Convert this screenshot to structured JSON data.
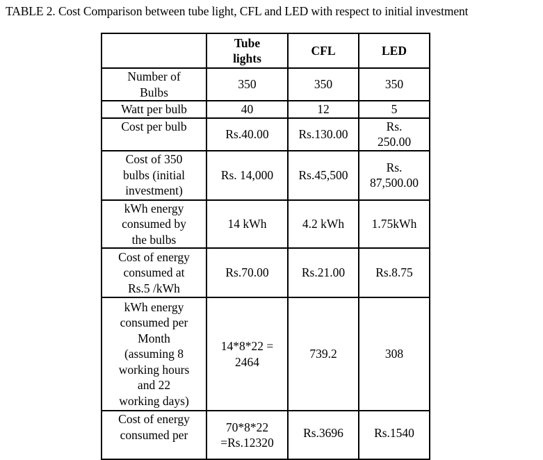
{
  "caption": "TABLE 2. Cost Comparison between tube light, CFL and LED with respect to initial investment",
  "headers": [
    "",
    "Tube\nlights",
    "CFL",
    "LED"
  ],
  "rows": [
    [
      "Number of\nBulbs",
      "350",
      "350",
      "350"
    ],
    [
      "Watt per bulb",
      "40",
      "12",
      "5"
    ],
    [
      "Cost per bulb",
      "Rs.40.00",
      "Rs.130.00",
      "Rs.\n250.00"
    ],
    [
      "Cost of 350\nbulbs (initial\ninvestment)",
      "Rs. 14,000",
      "Rs.45,500",
      "Rs.\n87,500.00"
    ],
    [
      "kWh energy\nconsumed by\nthe bulbs",
      "14 kWh",
      "4.2 kWh",
      "1.75kWh"
    ],
    [
      "Cost of energy\nconsumed at\nRs.5 /kWh",
      "Rs.70.00",
      "Rs.21.00",
      "Rs.8.75"
    ],
    [
      "kWh energy\nconsumed per\nMonth\n(assuming 8\nworking hours\nand 22\nworking days)",
      "14*8*22 =\n2464",
      "739.2",
      "308"
    ],
    [
      "Cost of energy\nconsumed per",
      "70*8*22\n=Rs.12320",
      "Rs.3696",
      "Rs.1540"
    ]
  ]
}
